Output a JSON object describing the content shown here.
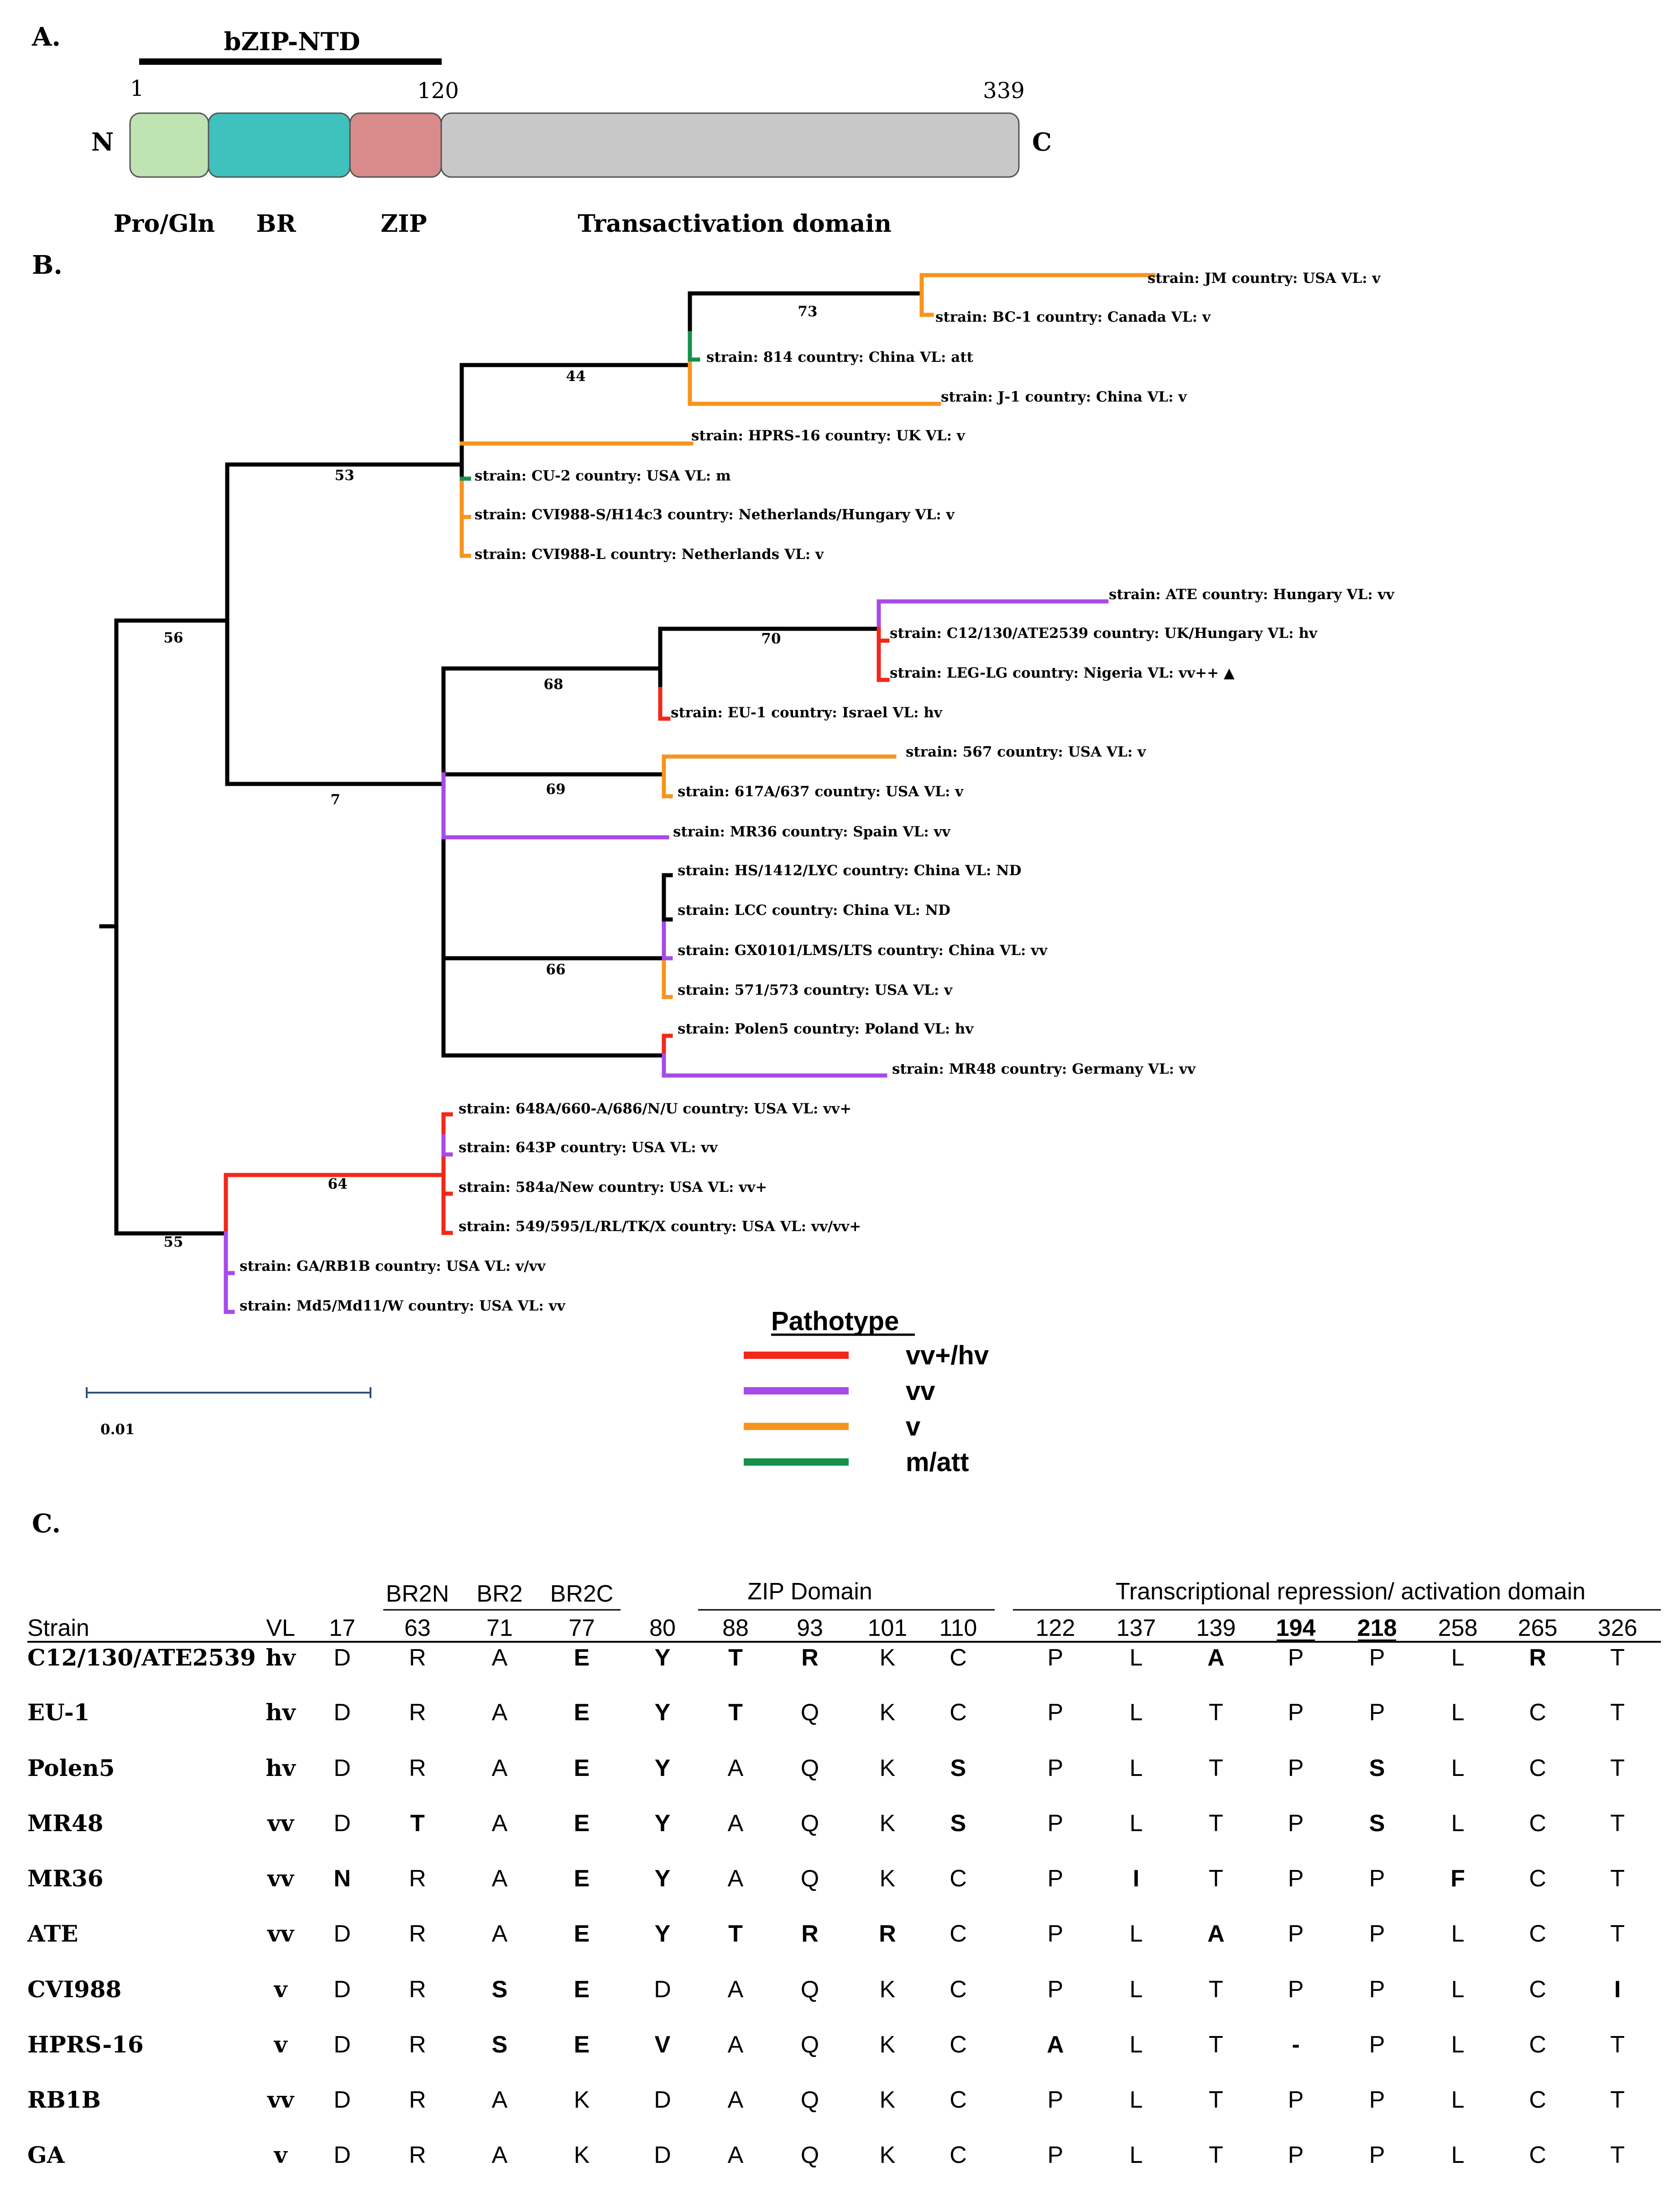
{
  "panelA": {
    "label": "A.",
    "ntd_label": "bZIP-NTD",
    "n_term": "N",
    "c_term": "C",
    "pos_start": "1",
    "pos_zip_end": "120",
    "pos_end": "339",
    "domains": [
      {
        "name": "Pro/Gln",
        "color": "#bfe3b3"
      },
      {
        "name": "BR",
        "color": "#3fc1bd"
      },
      {
        "name": "ZIP",
        "color": "#d98b8b"
      },
      {
        "name": "Transactivation domain",
        "color": "#c8c8c8"
      }
    ]
  },
  "panelB": {
    "label": "B.",
    "scale_label": "0.01",
    "bootstraps": [
      "73",
      "44",
      "53",
      "56",
      "70",
      "68",
      "69",
      "7",
      "66",
      "64",
      "55"
    ],
    "leaves": [
      "strain: JM  country: USA  VL: v",
      "strain: BC-1  country: Canada  VL: v",
      "strain: 814  country: China  VL: att",
      "strain: J-1  country: China  VL: v",
      "strain: HPRS-16  country: UK  VL: v",
      "strain: CU-2  country: USA  VL: m",
      "strain: CVI988-S/H14c3  country: Netherlands/Hungary  VL: v",
      "strain: CVI988-L  country: Netherlands  VL: v",
      "strain: ATE  country: Hungary  VL: vv",
      "strain: C12/130/ATE2539  country: UK/Hungary  VL: hv",
      "strain: LEG-LG  country: Nigeria  VL: vv++ ▲",
      "strain: EU-1  country: Israel  VL: hv",
      "strain: 567  country: USA  VL: v",
      "strain: 617A/637  country: USA  VL: v",
      "strain: MR36  country: Spain  VL: vv",
      "strain: HS/1412/LYC  country: China  VL: ND",
      "strain: LCC  country: China  VL: ND",
      "strain: GX0101/LMS/LTS country: China  VL: vv",
      "strain: 571/573  country: USA  VL: v",
      "strain: Polen5  country: Poland  VL: hv",
      "strain: MR48  country: Germany  VL: vv",
      "strain: 648A/660-A/686/N/U  country: USA  VL: vv+",
      "strain: 643P  country: USA  VL: vv",
      "strain: 584a/New  country: USA  VL: vv+",
      "strain: 549/595/L/RL/TK/X  country: USA  VL: vv/vv+",
      "strain: GA/RB1B  country: USA  VL: v/vv",
      "strain: Md5/Md11/W  country: USA  VL: vv"
    ],
    "legend": {
      "title": "Pathotype",
      "items": [
        {
          "label": "vv+/hv",
          "color": "#f2281a"
        },
        {
          "label": "vv",
          "color": "#a64ae8"
        },
        {
          "label": "v",
          "color": "#f7941d"
        },
        {
          "label": "m/att",
          "color": "#16904c"
        }
      ]
    }
  },
  "panelC": {
    "label": "C.",
    "groups": {
      "br2n": "BR2N",
      "br2": "BR2",
      "br2c": "BR2C",
      "zip": "ZIP Domain",
      "trans": "Transcriptional repression/ activation domain"
    },
    "columns": [
      "Strain",
      "VL",
      "17",
      "63",
      "71",
      "77",
      "80",
      "88",
      "93",
      "101",
      "110",
      "122",
      "137",
      "139",
      "194",
      "218",
      "258",
      "265",
      "326"
    ],
    "rows": [
      {
        "strain": "C12/130/ATE2539",
        "vl": "hv",
        "cells": [
          "D",
          "R",
          "A",
          "E",
          "Y",
          "T",
          "R",
          "K",
          "C",
          "P",
          "L",
          "A",
          "P",
          "P",
          "L",
          "R",
          "T"
        ],
        "bold": [
          3,
          4,
          5,
          6,
          11,
          15
        ]
      },
      {
        "strain": "EU-1",
        "vl": "hv",
        "cells": [
          "D",
          "R",
          "A",
          "E",
          "Y",
          "T",
          "Q",
          "K",
          "C",
          "P",
          "L",
          "T",
          "P",
          "P",
          "L",
          "C",
          "T"
        ],
        "bold": [
          3,
          4,
          5
        ]
      },
      {
        "strain": "Polen5",
        "vl": "hv",
        "cells": [
          "D",
          "R",
          "A",
          "E",
          "Y",
          "A",
          "Q",
          "K",
          "S",
          "P",
          "L",
          "T",
          "P",
          "S",
          "L",
          "C",
          "T"
        ],
        "bold": [
          3,
          4,
          8,
          13
        ]
      },
      {
        "strain": "MR48",
        "vl": "vv",
        "cells": [
          "D",
          "T",
          "A",
          "E",
          "Y",
          "A",
          "Q",
          "K",
          "S",
          "P",
          "L",
          "T",
          "P",
          "S",
          "L",
          "C",
          "T"
        ],
        "bold": [
          1,
          3,
          4,
          8,
          13
        ]
      },
      {
        "strain": "MR36",
        "vl": "vv",
        "cells": [
          "N",
          "R",
          "A",
          "E",
          "Y",
          "A",
          "Q",
          "K",
          "C",
          "P",
          "I",
          "T",
          "P",
          "P",
          "F",
          "C",
          "T"
        ],
        "bold": [
          0,
          3,
          4,
          10,
          14
        ]
      },
      {
        "strain": "ATE",
        "vl": "vv",
        "cells": [
          "D",
          "R",
          "A",
          "E",
          "Y",
          "T",
          "R",
          "R",
          "C",
          "P",
          "L",
          "A",
          "P",
          "P",
          "L",
          "C",
          "T"
        ],
        "bold": [
          3,
          4,
          5,
          6,
          7,
          11
        ]
      },
      {
        "strain": "CVI988",
        "vl": "v",
        "cells": [
          "D",
          "R",
          "S",
          "E",
          "D",
          "A",
          "Q",
          "K",
          "C",
          "P",
          "L",
          "T",
          "P",
          "P",
          "L",
          "C",
          "I"
        ],
        "bold": [
          2,
          3,
          16
        ]
      },
      {
        "strain": "HPRS-16",
        "vl": "v",
        "cells": [
          "D",
          "R",
          "S",
          "E",
          "V",
          "A",
          "Q",
          "K",
          "C",
          "A",
          "L",
          "T",
          "-",
          "P",
          "L",
          "C",
          "T"
        ],
        "bold": [
          2,
          3,
          4,
          9,
          12
        ]
      },
      {
        "strain": "RB1B",
        "vl": "vv",
        "cells": [
          "D",
          "R",
          "A",
          "K",
          "D",
          "A",
          "Q",
          "K",
          "C",
          "P",
          "L",
          "T",
          "P",
          "P",
          "L",
          "C",
          "T"
        ],
        "bold": []
      },
      {
        "strain": "GA",
        "vl": "v",
        "cells": [
          "D",
          "R",
          "A",
          "K",
          "D",
          "A",
          "Q",
          "K",
          "C",
          "P",
          "L",
          "T",
          "P",
          "P",
          "L",
          "C",
          "T"
        ],
        "bold": []
      }
    ]
  }
}
